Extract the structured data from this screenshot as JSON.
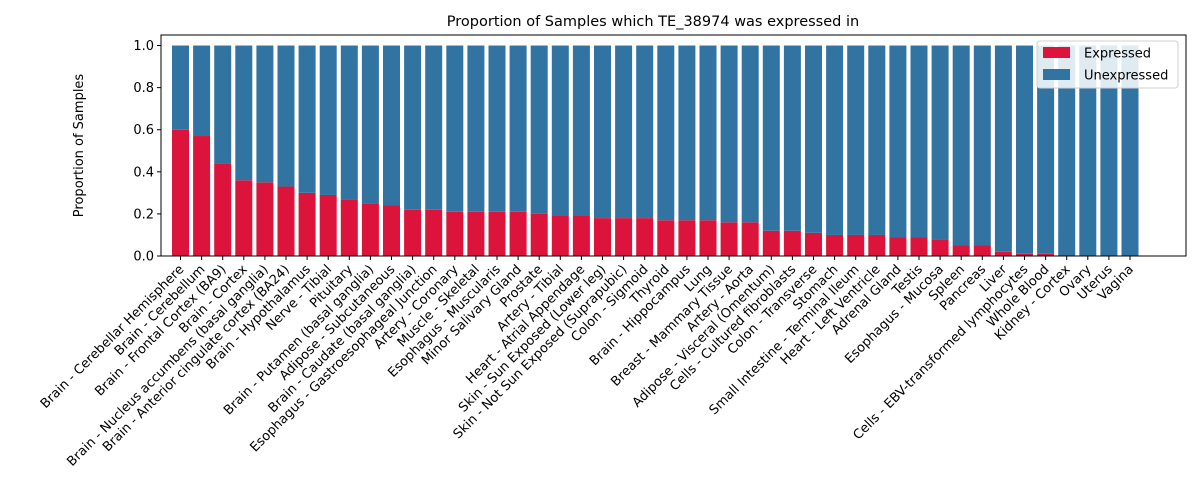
{
  "chart_data": {
    "type": "bar",
    "stacked": true,
    "title": "Proportion of Samples which TE_38974 was expressed in",
    "xlabel": "",
    "ylabel": "Proportion of Samples",
    "ylim": [
      0,
      1.05
    ],
    "yticks": [
      "0.0",
      "0.2",
      "0.4",
      "0.6",
      "0.8",
      "1.0"
    ],
    "legend_position": "top-right",
    "grid": false,
    "categories": [
      "Brain - Cerebellar Hemisphere",
      "Brain - Cerebellum",
      "Brain - Frontal Cortex (BA9)",
      "Brain - Cortex",
      "Brain - Nucleus accumbens (basal ganglia)",
      "Brain - Anterior cingulate cortex (BA24)",
      "Brain - Hypothalamus",
      "Nerve - Tibial",
      "Pituitary",
      "Brain - Putamen (basal ganglia)",
      "Adipose - Subcutaneous",
      "Brain - Caudate (basal ganglia)",
      "Esophagus - Gastroesophageal Junction",
      "Artery - Coronary",
      "Muscle - Skeletal",
      "Esophagus - Muscularis",
      "Minor Salivary Gland",
      "Prostate",
      "Artery - Tibial",
      "Heart - Atrial Appendage",
      "Skin - Sun Exposed (Lower leg)",
      "Skin - Not Sun Exposed (Suprapubic)",
      "Colon - Sigmoid",
      "Thyroid",
      "Brain - Hippocampus",
      "Lung",
      "Breast - Mammary Tissue",
      "Artery - Aorta",
      "Adipose - Visceral (Omentum)",
      "Cells - Cultured fibroblasts",
      "Colon - Transverse",
      "Stomach",
      "Small Intestine - Terminal Ileum",
      "Heart - Left Ventricle",
      "Adrenal Gland",
      "Testis",
      "Esophagus - Mucosa",
      "Spleen",
      "Pancreas",
      "Liver",
      "Cells - EBV-transformed lymphocytes",
      "Whole Blood",
      "Kidney - Cortex",
      "Ovary",
      "Uterus",
      "Vagina"
    ],
    "series": [
      {
        "name": "Expressed",
        "color": "#dc143c",
        "values": [
          0.6,
          0.57,
          0.44,
          0.36,
          0.35,
          0.33,
          0.3,
          0.29,
          0.27,
          0.25,
          0.24,
          0.22,
          0.22,
          0.21,
          0.21,
          0.21,
          0.21,
          0.2,
          0.19,
          0.19,
          0.18,
          0.18,
          0.18,
          0.17,
          0.17,
          0.17,
          0.16,
          0.16,
          0.12,
          0.12,
          0.11,
          0.1,
          0.1,
          0.1,
          0.09,
          0.09,
          0.08,
          0.05,
          0.05,
          0.02,
          0.01,
          0.01,
          0.0,
          0.0,
          0.0,
          0.0
        ]
      },
      {
        "name": "Unexpressed",
        "color": "#3274a1",
        "values": [
          0.4,
          0.43,
          0.56,
          0.64,
          0.65,
          0.67,
          0.7,
          0.71,
          0.73,
          0.75,
          0.76,
          0.78,
          0.78,
          0.79,
          0.79,
          0.79,
          0.79,
          0.8,
          0.81,
          0.81,
          0.82,
          0.82,
          0.82,
          0.83,
          0.83,
          0.83,
          0.84,
          0.84,
          0.88,
          0.88,
          0.89,
          0.9,
          0.9,
          0.9,
          0.91,
          0.91,
          0.92,
          0.95,
          0.95,
          0.98,
          0.99,
          0.99,
          1.0,
          1.0,
          1.0,
          1.0
        ]
      }
    ]
  }
}
